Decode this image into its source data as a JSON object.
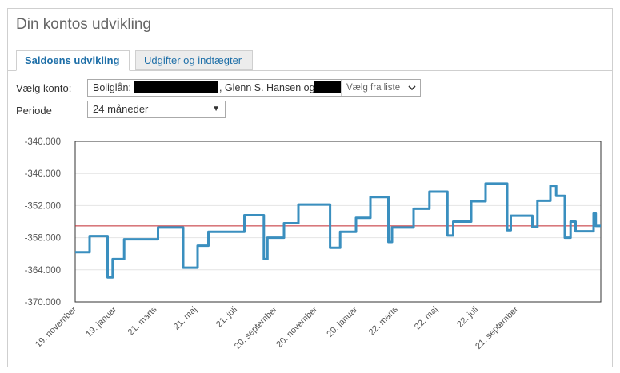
{
  "page": {
    "title": "Din kontos udvikling"
  },
  "tabs": [
    {
      "label": "Saldoens udvikling",
      "active": true
    },
    {
      "label": "Udgifter og indtægter",
      "active": false
    }
  ],
  "account": {
    "label": "Vælg konto:",
    "prefix": "Boliglån:",
    "middle": ", Glenn S. Hansen og",
    "picker_label": "Vælg fra liste",
    "picker_icon": "chevron-down-icon"
  },
  "period": {
    "label": "Periode",
    "value": "24 måneder"
  },
  "colors": {
    "line": "#3a8fbf",
    "reference": "#c0282e",
    "tab_text": "#1e6fa8"
  },
  "chart_data": {
    "type": "line",
    "ylim": [
      -370000,
      -340000
    ],
    "yticks": [
      -340000,
      -346000,
      -352000,
      -358000,
      -364000,
      -370000
    ],
    "ytick_labels": [
      "-340.000",
      "-346.000",
      "-352.000",
      "-358.000",
      "-364.000",
      "-370.000"
    ],
    "xtick_labels": [
      "19. november",
      "19. januar",
      "21. marts",
      "21. maj",
      "21. juli",
      "20. september",
      "20. november",
      "20. januar",
      "22. marts",
      "22. maj",
      "22. juli",
      "21. september"
    ],
    "xlim": [
      0,
      730
    ],
    "reference_value": -355800,
    "grid": true,
    "series": [
      {
        "x": [
          0,
          20,
          20,
          45,
          45,
          52,
          52,
          68,
          68,
          115,
          115,
          150,
          150,
          170,
          170,
          185,
          185,
          235,
          235,
          262,
          262,
          267,
          267,
          290,
          290,
          310,
          310,
          354,
          354,
          368,
          368,
          390,
          390,
          410,
          410,
          435,
          435,
          440,
          440,
          470,
          470,
          492,
          492,
          517,
          517,
          525,
          525,
          550,
          550,
          570,
          570,
          600,
          600,
          605,
          605,
          635,
          635,
          642,
          642,
          660,
          660,
          668,
          668,
          680,
          680,
          688,
          688,
          695,
          695,
          720,
          720,
          723,
          723,
          730
        ],
        "y": [
          -360700,
          -360700,
          -357700,
          -357700,
          -365400,
          -365400,
          -362000,
          -362000,
          -358300,
          -358300,
          -356100,
          -356100,
          -363600,
          -363600,
          -359500,
          -359500,
          -356900,
          -356900,
          -353800,
          -353800,
          -362000,
          -362000,
          -358000,
          -358000,
          -355300,
          -355300,
          -351800,
          -351800,
          -359900,
          -359900,
          -356900,
          -356900,
          -354300,
          -354300,
          -350400,
          -350400,
          -358800,
          -358800,
          -356100,
          -356100,
          -352600,
          -352600,
          -349400,
          -349400,
          -357600,
          -357600,
          -355000,
          -355000,
          -351200,
          -351200,
          -347900,
          -347900,
          -356600,
          -356600,
          -353900,
          -353900,
          -356000,
          -356000,
          -351100,
          -351100,
          -348300,
          -348300,
          -350200,
          -350200,
          -358000,
          -358000,
          -355000,
          -355000,
          -356800,
          -356800,
          -353500,
          -353500,
          -355800,
          -355800
        ]
      }
    ]
  }
}
